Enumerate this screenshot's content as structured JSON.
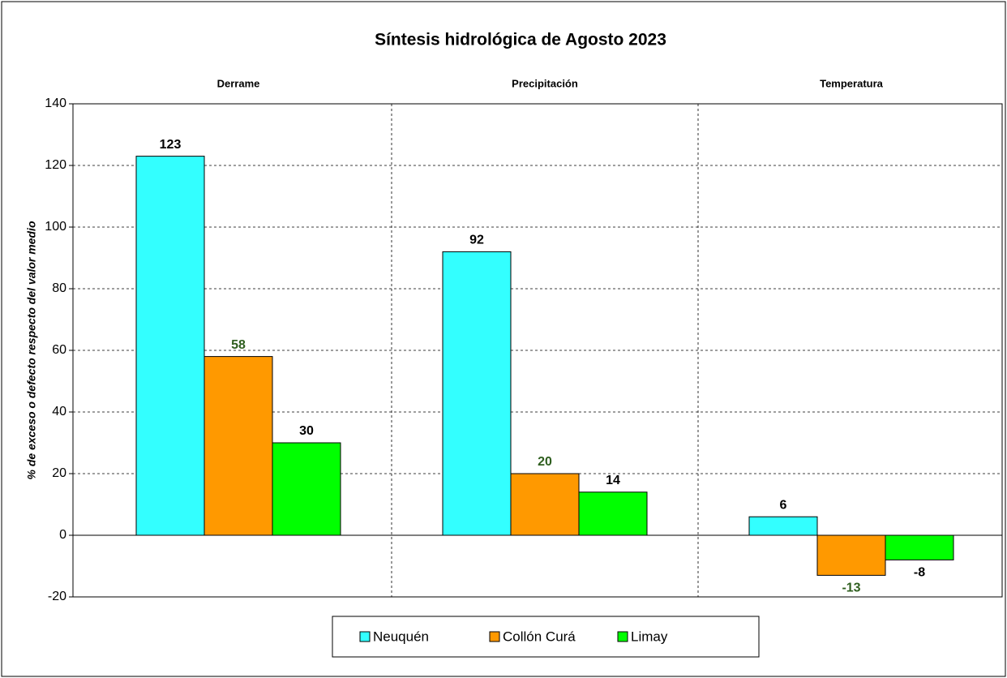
{
  "chart_data": {
    "type": "bar",
    "title": "Síntesis hidrológica de Agosto 2023",
    "y_label": "% de exceso o defecto respecto del valor medio",
    "categories": [
      "Derrame",
      "Precipitación",
      "Temperatura"
    ],
    "series": [
      {
        "name": "Neuquén",
        "color": "#33ffff",
        "label_color": "#000000",
        "values": [
          123,
          92,
          6
        ]
      },
      {
        "name": "Collón Curá",
        "color": "#ff9900",
        "label_color": "#2e5e1e",
        "values": [
          58,
          20,
          -13
        ]
      },
      {
        "name": "Limay",
        "color": "#00ff00",
        "label_color": "#000000",
        "values": [
          30,
          14,
          -8
        ]
      }
    ],
    "ylim": [
      -20,
      140
    ],
    "yticks": [
      -20,
      0,
      20,
      40,
      60,
      80,
      100,
      120,
      140
    ],
    "grid": true,
    "legend": "bottom"
  }
}
